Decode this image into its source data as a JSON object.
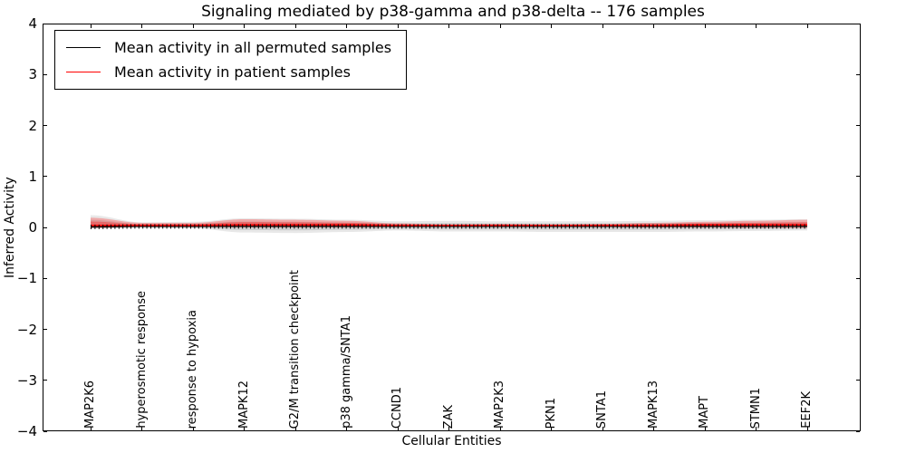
{
  "figure": {
    "title": "Signaling mediated by p38-gamma and p38-delta -- 176 samples",
    "xlabel": "Cellular Entities",
    "ylabel": "Inferred Activity"
  },
  "legend": {
    "items": [
      {
        "label": "Mean activity in all permuted samples",
        "color": "#000000"
      },
      {
        "label": "Mean activity in patient samples",
        "color": "#ff0000"
      }
    ]
  },
  "chart_data": {
    "type": "line",
    "title": "Signaling mediated by p38-gamma and p38-delta -- 176 samples",
    "xlabel": "Cellular Entities",
    "ylabel": "Inferred Activity",
    "ylim": [
      -4,
      4
    ],
    "yticks": [
      4,
      3,
      2,
      1,
      0,
      -1,
      -2,
      -3,
      -4
    ],
    "ytick_labels": [
      "4",
      "3",
      "2",
      "1",
      "0",
      "−1",
      "−2",
      "−3",
      "−4"
    ],
    "grid": false,
    "legend_position": "upper left",
    "categories": [
      "MAP2K6",
      "hyperosmotic response",
      "response to hypoxia",
      "MAPK12",
      "G2/M transition checkpoint",
      "p38 gamma/SNTA1",
      "CCND1",
      "ZAK",
      "MAP2K3",
      "PKN1",
      "SNTA1",
      "MAPK13",
      "MAPT",
      "STMN1",
      "EEF2K"
    ],
    "series": [
      {
        "name": "Mean activity in all permuted samples",
        "color": "#000000",
        "band_color": "#999999",
        "values": [
          0.01,
          0.02,
          0.02,
          0.02,
          0.02,
          0.02,
          0.02,
          0.02,
          0.02,
          0.02,
          0.02,
          0.02,
          0.02,
          0.02,
          0.02
        ],
        "band_upper": [
          0.24,
          0.1,
          0.11,
          0.18,
          0.17,
          0.15,
          0.12,
          0.13,
          0.12,
          0.12,
          0.12,
          0.13,
          0.14,
          0.15,
          0.16
        ],
        "band_lower": [
          -0.03,
          -0.01,
          -0.02,
          -0.1,
          -0.11,
          -0.09,
          -0.06,
          -0.08,
          -0.08,
          -0.09,
          -0.09,
          -0.09,
          -0.08,
          -0.07,
          -0.06
        ]
      },
      {
        "name": "Mean activity in patient samples",
        "color": "#ff0000",
        "band_color": "#ff0000",
        "values": [
          0.04,
          0.04,
          0.04,
          0.05,
          0.05,
          0.05,
          0.04,
          0.04,
          0.04,
          0.04,
          0.04,
          0.04,
          0.05,
          0.05,
          0.05
        ],
        "band_upper": [
          0.19,
          0.09,
          0.09,
          0.16,
          0.15,
          0.13,
          0.08,
          0.06,
          0.07,
          0.06,
          0.07,
          0.09,
          0.11,
          0.13,
          0.15
        ],
        "band_lower": [
          -0.01,
          0.01,
          0.01,
          0.0,
          0.0,
          0.0,
          0.01,
          0.01,
          0.01,
          0.01,
          0.01,
          0.0,
          0.0,
          -0.005,
          -0.01
        ]
      }
    ]
  }
}
